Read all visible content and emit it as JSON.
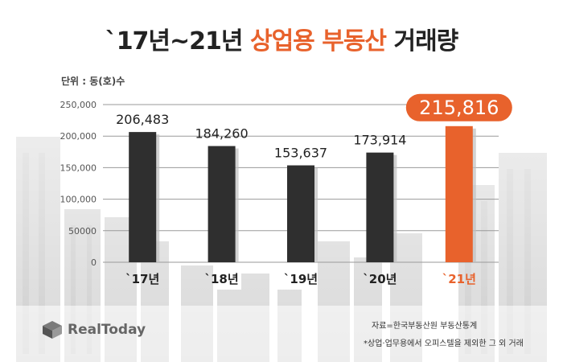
{
  "title": {
    "prefix": "`17년~21년",
    "highlight": "상업용 부동산",
    "suffix": "거래량"
  },
  "unit_label": "단위 : 동(호)수",
  "colors": {
    "bar": "#2f2f2f",
    "highlight": "#e8622c",
    "gridline": "#9a9a9a",
    "axis_text": "#555555"
  },
  "chart_data": {
    "type": "bar",
    "categories": [
      "`17년",
      "`18년",
      "`19년",
      "`20년",
      "`21년"
    ],
    "values": [
      206483,
      184260,
      153637,
      173914,
      215816
    ],
    "value_labels": [
      "206,483",
      "184,260",
      "153,637",
      "173,914",
      "215,816"
    ],
    "highlight_index": 4,
    "yticks": [
      0,
      50000,
      100000,
      150000,
      200000,
      250000
    ],
    "ytick_labels": [
      "0",
      "50000",
      "100,000",
      "150,000",
      "200,000",
      "250,000"
    ],
    "ylim": [
      0,
      250000
    ],
    "grid": true
  },
  "logo_text": "RealToday",
  "logo_icon": "cube-logo-icon",
  "source": "자료=한국부동산원 부동산통계",
  "note": "*상업·업무용에서 오피스텔을 제외한 그 외 거래"
}
